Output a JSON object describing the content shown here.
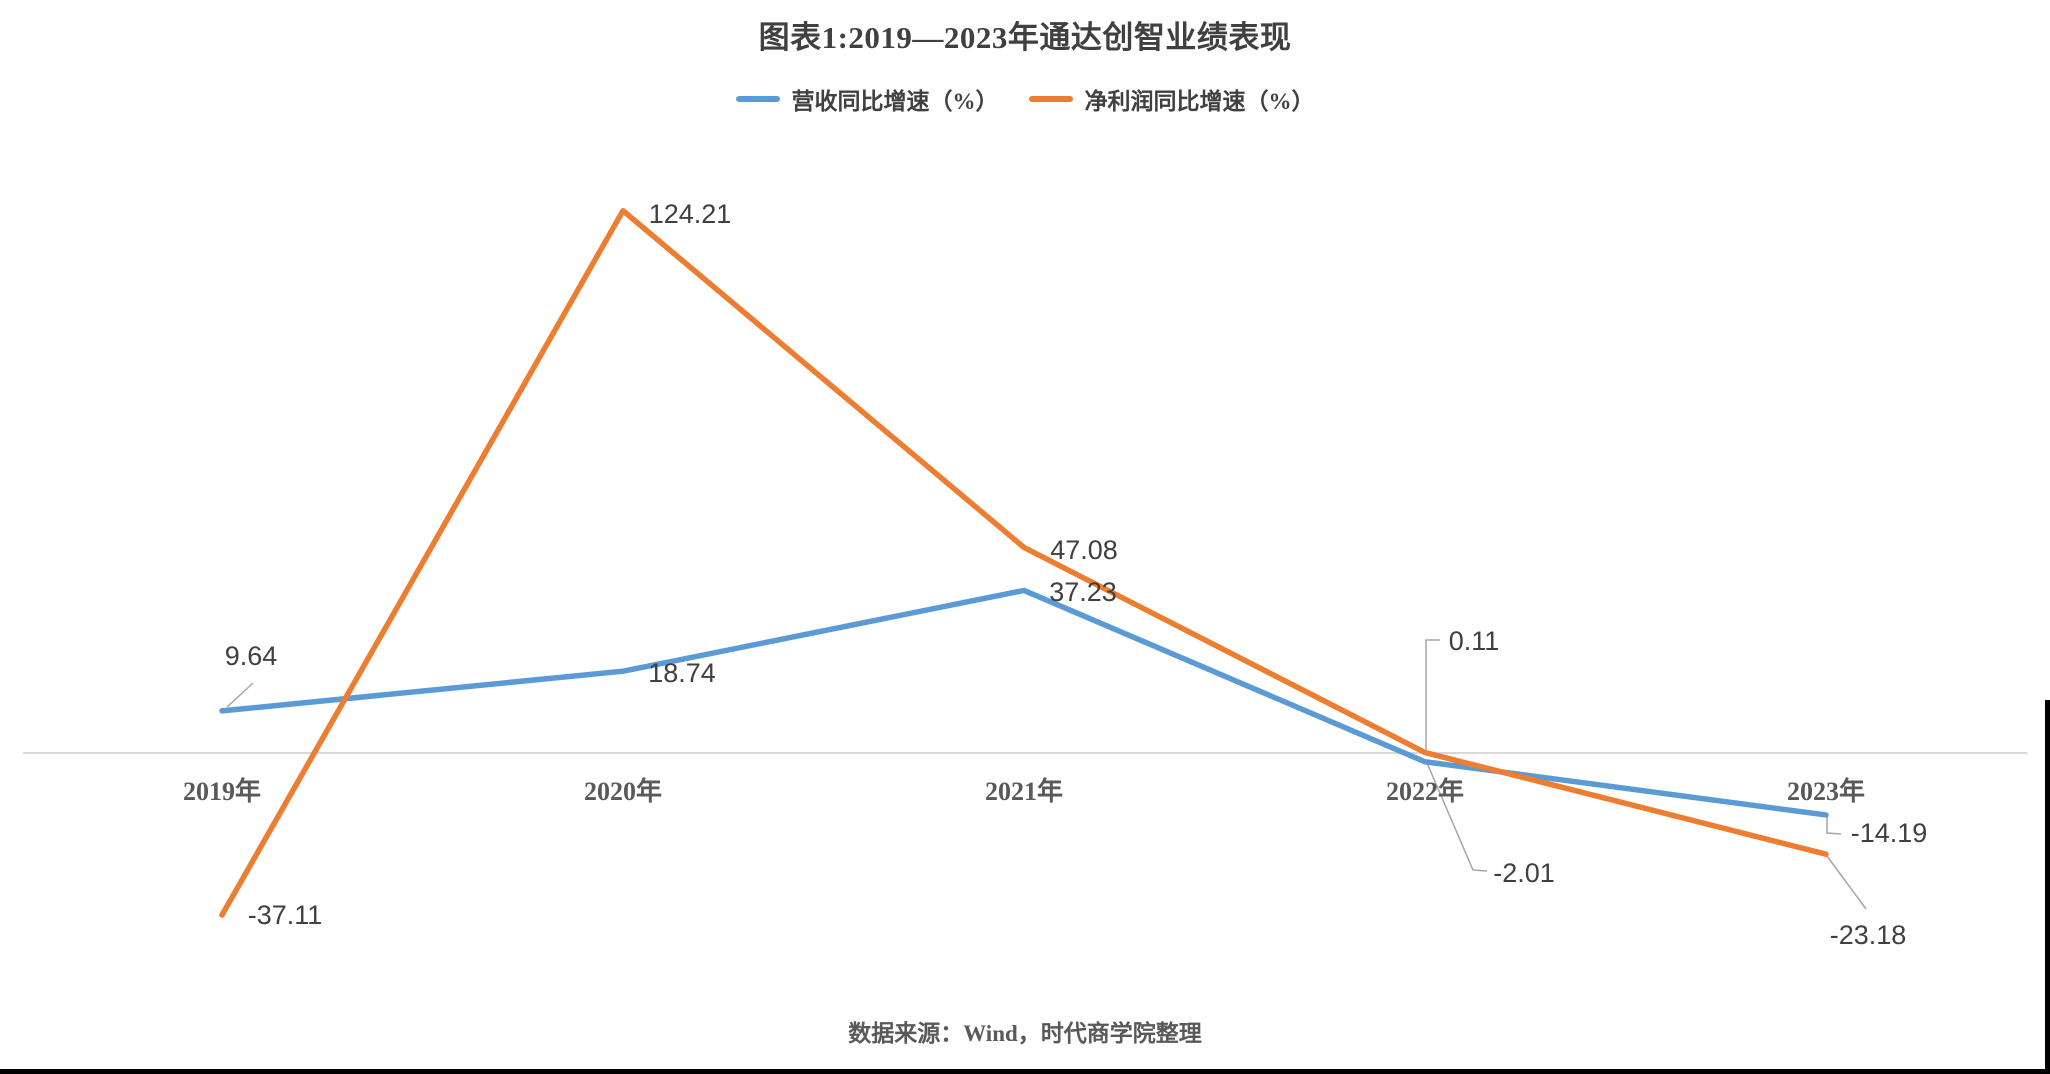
{
  "chart_data": {
    "type": "line",
    "title": "图表1:2019—2023年通达创智业绩表现",
    "categories": [
      "2019年",
      "2020年",
      "2021年",
      "2022年",
      "2023年"
    ],
    "series": [
      {
        "name": "营收同比增速（%）",
        "color": "#5B9BD5",
        "values": [
          9.64,
          18.74,
          37.23,
          -2.01,
          -14.19
        ]
      },
      {
        "name": "净利润同比增速（%）",
        "color": "#ED7D31",
        "values": [
          -37.11,
          124.21,
          47.08,
          0.11,
          -23.18
        ]
      }
    ],
    "source_note": "数据来源：Wind，时代商学院整理",
    "legend_position": "top",
    "grid": "off",
    "y_axis": "hidden",
    "baseline_value": 0,
    "colors": {
      "axis_line": "#D9D9D9",
      "data_label": "#404040",
      "axis_label": "#595959",
      "leader_line": "#A6A6A6",
      "title": "#404040",
      "source_note": "#595959",
      "page_border": "#000000"
    }
  }
}
